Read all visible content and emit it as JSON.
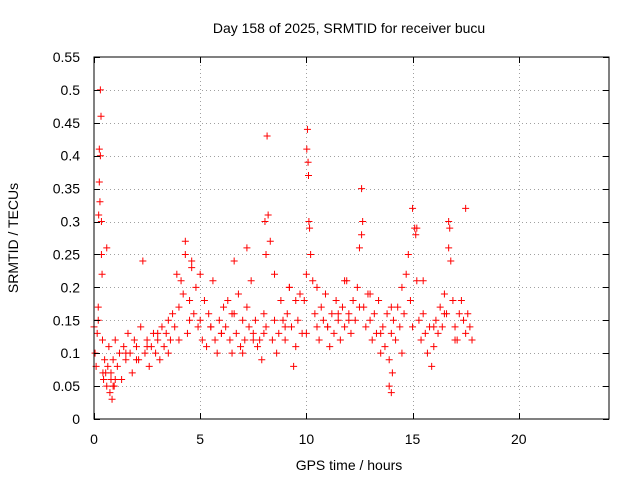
{
  "chart_data": {
    "type": "scatter",
    "title": "Day 158 of 2025, SRMTID for receiver bucu",
    "xlabel": "GPS time / hours",
    "ylabel": "SRMTID / TECUs",
    "xlim": [
      0,
      24.25
    ],
    "ylim": [
      0,
      0.55
    ],
    "x_ticks": [
      "0",
      "5",
      "10",
      "15",
      "20"
    ],
    "x_tick_values": [
      0,
      5,
      10,
      15,
      20
    ],
    "y_ticks": [
      "0",
      "0.05",
      "0.1",
      "0.15",
      "0.2",
      "0.25",
      "0.3",
      "0.35",
      "0.4",
      "0.45",
      "0.5",
      "0.55"
    ],
    "y_tick_values": [
      0,
      0.05,
      0.1,
      0.15,
      0.2,
      0.25,
      0.3,
      0.35,
      0.4,
      0.45,
      0.5,
      0.55
    ],
    "grid": true,
    "marker": "+",
    "marker_color": "#ff0000",
    "series": [
      {
        "name": "SRMTID",
        "x": [
          0.0,
          0.05,
          0.1,
          0.15,
          0.2,
          0.22,
          0.25,
          0.28,
          0.3,
          0.33,
          0.35,
          0.38,
          0.4,
          0.42,
          0.45,
          0.5,
          0.55,
          0.6,
          0.65,
          0.7,
          0.75,
          0.8,
          0.85,
          0.9,
          0.95,
          1.0,
          1.1,
          1.2,
          1.3,
          1.4,
          1.5,
          1.6,
          1.7,
          1.8,
          1.9,
          2.0,
          2.1,
          2.2,
          2.3,
          2.4,
          2.5,
          2.6,
          2.7,
          2.8,
          2.9,
          3.0,
          3.1,
          3.2,
          3.3,
          3.4,
          3.5,
          3.6,
          3.7,
          3.8,
          3.9,
          4.0,
          4.1,
          4.2,
          4.3,
          4.4,
          4.5,
          4.6,
          4.7,
          4.8,
          4.9,
          5.0,
          5.1,
          5.2,
          5.3,
          5.4,
          5.5,
          5.6,
          5.7,
          5.8,
          5.9,
          6.0,
          6.1,
          6.2,
          6.3,
          6.4,
          6.5,
          6.6,
          6.7,
          6.8,
          6.9,
          7.0,
          7.1,
          7.2,
          7.3,
          7.4,
          7.5,
          7.6,
          7.7,
          7.8,
          7.9,
          8.0,
          8.1,
          8.2,
          8.3,
          8.4,
          8.5,
          8.6,
          8.7,
          8.8,
          8.9,
          9.0,
          9.1,
          9.2,
          9.3,
          9.4,
          9.5,
          9.6,
          9.7,
          9.8,
          9.9,
          10.0,
          10.05,
          10.1,
          10.15,
          10.2,
          10.3,
          10.4,
          10.5,
          10.6,
          10.7,
          10.8,
          10.9,
          11.0,
          11.1,
          11.2,
          11.3,
          11.4,
          11.5,
          11.6,
          11.7,
          11.8,
          11.9,
          12.0,
          12.1,
          12.2,
          12.3,
          12.4,
          12.5,
          12.6,
          12.7,
          12.8,
          12.9,
          13.0,
          13.1,
          13.2,
          13.3,
          13.4,
          13.5,
          13.6,
          13.7,
          13.8,
          13.9,
          14.0,
          14.1,
          14.2,
          14.3,
          14.4,
          14.5,
          14.6,
          14.7,
          14.8,
          14.9,
          15.0,
          15.1,
          15.2,
          15.3,
          15.4,
          15.5,
          15.6,
          15.7,
          15.8,
          15.9,
          16.0,
          16.1,
          16.2,
          16.3,
          16.4,
          16.5,
          16.6,
          16.7,
          16.8,
          16.9,
          17.0,
          17.1,
          17.2,
          17.3,
          17.4,
          17.5,
          17.6,
          17.7,
          17.8,
          0.2,
          0.25,
          0.3,
          0.35,
          0.6,
          0.8,
          0.9,
          1.0,
          1.5,
          2.0,
          2.5,
          3.0,
          3.5,
          4.0,
          4.5,
          5.0,
          5.5,
          6.0,
          6.5,
          7.0,
          7.5,
          8.0,
          8.5,
          9.0,
          9.5,
          10.0,
          10.5,
          11.0,
          11.5,
          12.0,
          12.5,
          13.0,
          13.5,
          14.0,
          14.5,
          15.0,
          15.5,
          16.0,
          16.5,
          17.0,
          17.5,
          8.05,
          8.1,
          8.15,
          10.02,
          10.08,
          10.12,
          12.6,
          12.65,
          15.15,
          15.2,
          16.7,
          16.75,
          4.3,
          4.6,
          6.6,
          7.2,
          9.2,
          11.8,
          13.9,
          14.0,
          14.05
        ],
        "y": [
          0.14,
          0.1,
          0.08,
          0.13,
          0.17,
          0.31,
          0.41,
          0.33,
          0.5,
          0.46,
          0.25,
          0.22,
          0.12,
          0.07,
          0.06,
          0.09,
          0.07,
          0.05,
          0.08,
          0.11,
          0.04,
          0.06,
          0.03,
          0.09,
          0.05,
          0.12,
          0.08,
          0.1,
          0.06,
          0.11,
          0.09,
          0.13,
          0.1,
          0.07,
          0.12,
          0.11,
          0.09,
          0.14,
          0.24,
          0.1,
          0.12,
          0.08,
          0.11,
          0.13,
          0.1,
          0.12,
          0.09,
          0.14,
          0.11,
          0.13,
          0.15,
          0.12,
          0.16,
          0.14,
          0.22,
          0.17,
          0.21,
          0.19,
          0.25,
          0.13,
          0.18,
          0.24,
          0.16,
          0.2,
          0.14,
          0.15,
          0.12,
          0.18,
          0.11,
          0.16,
          0.14,
          0.21,
          0.12,
          0.1,
          0.15,
          0.13,
          0.17,
          0.14,
          0.18,
          0.12,
          0.1,
          0.16,
          0.13,
          0.19,
          0.11,
          0.15,
          0.12,
          0.17,
          0.14,
          0.21,
          0.13,
          0.15,
          0.11,
          0.12,
          0.09,
          0.16,
          0.14,
          0.31,
          0.27,
          0.12,
          0.15,
          0.1,
          0.13,
          0.18,
          0.15,
          0.12,
          0.16,
          0.2,
          0.14,
          0.08,
          0.11,
          0.15,
          0.19,
          0.13,
          0.18,
          0.22,
          0.44,
          0.37,
          0.29,
          0.25,
          0.21,
          0.16,
          0.14,
          0.12,
          0.17,
          0.15,
          0.19,
          0.14,
          0.11,
          0.16,
          0.13,
          0.18,
          0.15,
          0.12,
          0.17,
          0.14,
          0.21,
          0.16,
          0.13,
          0.18,
          0.15,
          0.2,
          0.26,
          0.35,
          0.17,
          0.14,
          0.19,
          0.15,
          0.12,
          0.16,
          0.13,
          0.18,
          0.1,
          0.14,
          0.11,
          0.16,
          0.09,
          0.13,
          0.15,
          0.12,
          0.17,
          0.14,
          0.2,
          0.16,
          0.22,
          0.25,
          0.18,
          0.32,
          0.29,
          0.21,
          0.15,
          0.12,
          0.16,
          0.13,
          0.1,
          0.14,
          0.08,
          0.11,
          0.15,
          0.13,
          0.17,
          0.14,
          0.19,
          0.16,
          0.3,
          0.24,
          0.18,
          0.14,
          0.12,
          0.16,
          0.18,
          0.15,
          0.13,
          0.16,
          0.14,
          0.12,
          0.15,
          0.36,
          0.4,
          0.3,
          0.26,
          0.07,
          0.05,
          0.06,
          0.1,
          0.09,
          0.11,
          0.13,
          0.1,
          0.12,
          0.15,
          0.22,
          0.14,
          0.13,
          0.16,
          0.1,
          0.12,
          0.13,
          0.22,
          0.14,
          0.18,
          0.13,
          0.2,
          0.14,
          0.16,
          0.15,
          0.17,
          0.19,
          0.13,
          0.17,
          0.1,
          0.14,
          0.21,
          0.14,
          0.16,
          0.12,
          0.32,
          0.3,
          0.25,
          0.43,
          0.41,
          0.39,
          0.3,
          0.28,
          0.3,
          0.28,
          0.29,
          0.26,
          0.29,
          0.27,
          0.23,
          0.24,
          0.26,
          0.2,
          0.21,
          0.05,
          0.04,
          0.07
        ]
      }
    ]
  }
}
